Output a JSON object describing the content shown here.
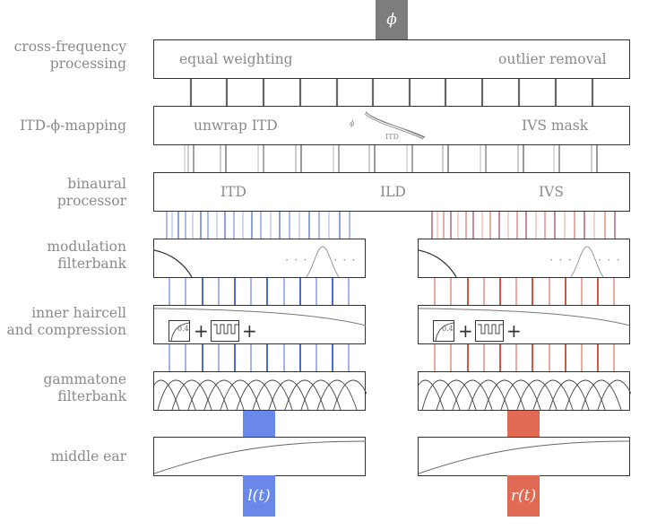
{
  "labels": {
    "cross_frequency_line1": "cross-frequency",
    "cross_frequency_line2": "processing",
    "itd_mapping": "ITD-ϕ-mapping",
    "binaural_line1": "binaural",
    "binaural_line2": "processor",
    "modulation_line1": "modulation",
    "modulation_line2": "filterbank",
    "haircell_line1": "inner haircell",
    "haircell_line2": "and compression",
    "gammatone_line1": "gammatone",
    "gammatone_line2": "filterbank",
    "middle_ear": "middle ear"
  },
  "output_symbol": "ϕ",
  "cross_frequency": {
    "left": "equal weighting",
    "right": "outlier removal"
  },
  "itd_mapping_box": {
    "left": "unwrap ITD",
    "right": "IVS mask",
    "curve_label": "ITD",
    "curve_symbol": "ϕ"
  },
  "binaural_box": {
    "itd": "ITD",
    "ild": "ILD",
    "ivs": "IVS"
  },
  "modulation_dots": "· · ·",
  "compression_exponent": "0.4",
  "plus_sign": "+",
  "inputs": {
    "left": "l(t)",
    "right": "r(t)"
  },
  "colors": {
    "left": "#6a88ea",
    "right": "#e06a53",
    "phi_box": "#7d7d7d",
    "text": "#8a8a8a"
  }
}
